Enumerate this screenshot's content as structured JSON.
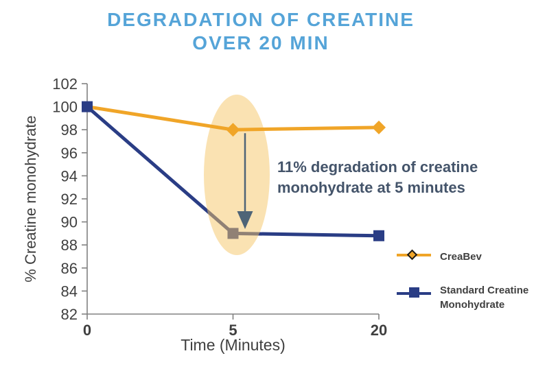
{
  "title": "DEGRADATION OF CREATINE OVER 20 MIN",
  "chart_data": {
    "type": "line",
    "title": "DEGRADATION OF CREATINE OVER 20 MIN",
    "categories": [
      "0",
      "5",
      "20"
    ],
    "series": [
      {
        "name": "CreaBev",
        "values": [
          100,
          98,
          98.2
        ],
        "color": "#F0A528",
        "marker": "diamond"
      },
      {
        "name": "Standard Creatine Monohydrate",
        "values": [
          100,
          89,
          88.8
        ],
        "color": "#2A3D85",
        "marker": "square"
      }
    ],
    "xlabel": "Time (Minutes)",
    "ylabel": "% Creatine monohydrate",
    "ylim": [
      82,
      102
    ],
    "yticks": [
      102,
      100,
      98,
      96,
      94,
      92,
      90,
      88,
      86,
      84,
      82
    ],
    "grid": false,
    "legend_position": "right",
    "annotation": {
      "text": "11% degradation of creatine monohydrate at 5 minutes",
      "highlight": "translucent ellipse over the 5-minute points",
      "arrow": "downward from CreaBev point to Standard Creatine point at 5 minutes"
    }
  },
  "legend": {
    "items": [
      {
        "label": "CreaBev"
      },
      {
        "label": "Standard Creatine Monohydrate"
      }
    ]
  },
  "colors": {
    "title": "#55A4D8",
    "axis_line": "#808080",
    "tick_label": "#3F3F3F",
    "annotation_text": "#44546A",
    "arrow": "#4E6477",
    "highlight_ellipse": "#F6C566",
    "legend_text": "#404040"
  }
}
